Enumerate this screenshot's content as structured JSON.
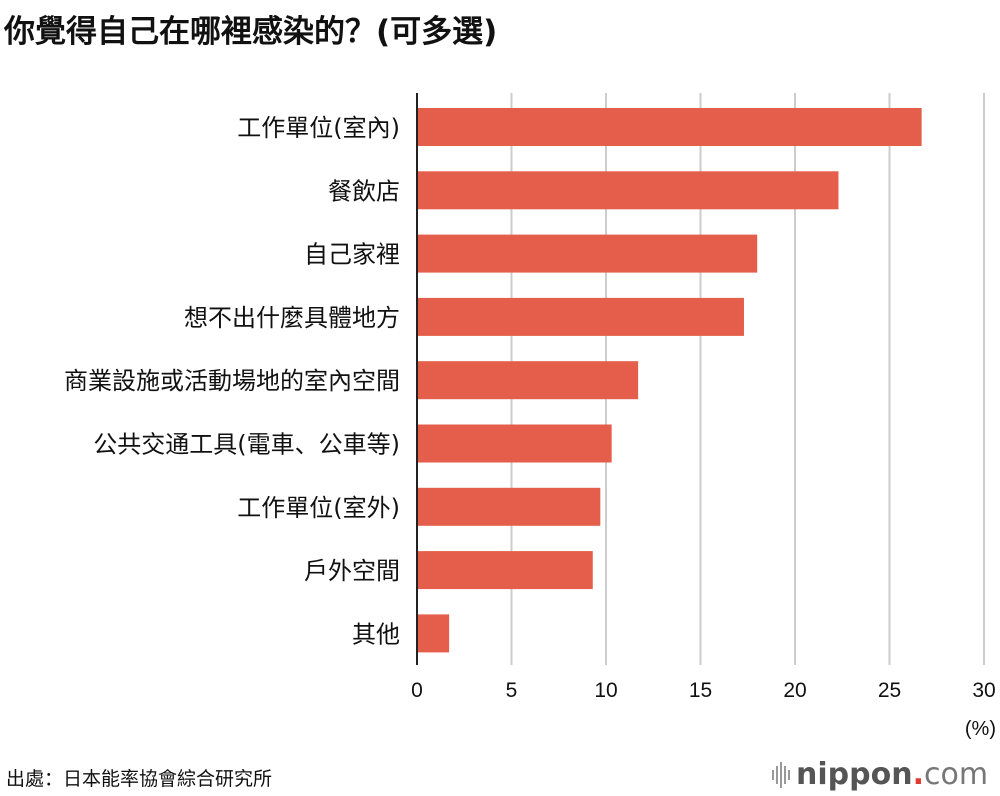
{
  "title": "你覺得自己在哪裡感染的？(可多選)",
  "source": "出處：日本能率協會綜合研究所",
  "logo": {
    "name": "nippon",
    "dot": ".",
    "tld": "com"
  },
  "colors": {
    "bar": "#e55e4b",
    "grid": "#cccccc",
    "axis": "#222222"
  },
  "chart_data": {
    "type": "bar",
    "orientation": "horizontal",
    "title": "你覺得自己在哪裡感染的？(可多選)",
    "categories": [
      "工作單位(室內)",
      "餐飲店",
      "自己家裡",
      "想不出什麼具體地方",
      "商業設施或活動場地的室內空間",
      "公共交通工具(電車、公車等)",
      "工作單位(室外)",
      "戶外空間",
      "其他"
    ],
    "values": [
      26.7,
      22.3,
      18.0,
      17.3,
      11.7,
      10.3,
      9.7,
      9.3,
      1.7
    ],
    "xlabel": "(%)",
    "ylabel": "",
    "xlim": [
      0,
      30
    ],
    "xticks": [
      "0",
      "5",
      "10",
      "15",
      "20",
      "25",
      "30"
    ],
    "grid": true
  }
}
